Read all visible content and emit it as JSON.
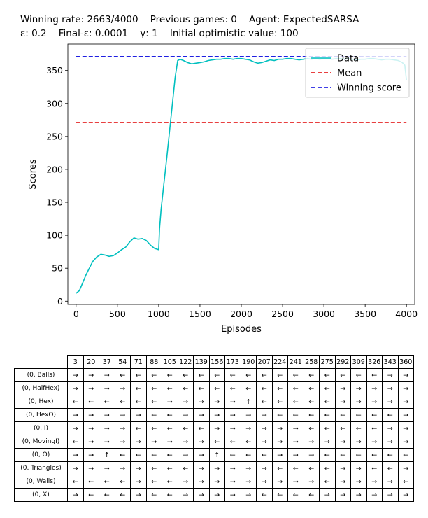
{
  "header": {
    "line1": "Winning rate: 2663/4000    Previous games: 0    Agent: ExpectedSARSA",
    "line2": "ε: 0.2    Final-ε: 0.0001    γ: 1    Initial optimistic value: 100"
  },
  "chart_data": {
    "type": "line",
    "title": "",
    "xlabel": "Episodes",
    "ylabel": "Scores",
    "xlim": [
      -100,
      4100
    ],
    "ylim": [
      -5,
      390
    ],
    "xticks": [
      0,
      500,
      1000,
      1500,
      2000,
      2500,
      3000,
      3500,
      4000
    ],
    "yticks": [
      0,
      50,
      100,
      150,
      200,
      250,
      300,
      350
    ],
    "grid": false,
    "legend": "top-right",
    "series": [
      {
        "name": "Data",
        "color": "#00bfbf",
        "style": "solid",
        "x": [
          0,
          40,
          80,
          120,
          160,
          200,
          250,
          300,
          350,
          400,
          450,
          500,
          550,
          600,
          650,
          700,
          750,
          800,
          850,
          900,
          950,
          1000,
          1010,
          1030,
          1060,
          1100,
          1150,
          1200,
          1230,
          1260,
          1300,
          1350,
          1400,
          1450,
          1500,
          1550,
          1600,
          1650,
          1700,
          1750,
          1800,
          1850,
          1900,
          1950,
          2000,
          2050,
          2100,
          2150,
          2200,
          2250,
          2300,
          2350,
          2400,
          2450,
          2500,
          2550,
          2600,
          2650,
          2700,
          2750,
          2800,
          2850,
          2900,
          2950,
          3000,
          3050,
          3100,
          3150,
          3200,
          3250,
          3300,
          3350,
          3400,
          3450,
          3500,
          3550,
          3600,
          3650,
          3700,
          3750,
          3800,
          3850,
          3900,
          3950,
          3980,
          4000
        ],
        "y": [
          12,
          16,
          28,
          40,
          50,
          60,
          67,
          71,
          70,
          68,
          69,
          73,
          78,
          82,
          90,
          96,
          94,
          95,
          92,
          85,
          80,
          78,
          110,
          140,
          175,
          220,
          280,
          340,
          365,
          367,
          365,
          362,
          360,
          361,
          362,
          363,
          365,
          366,
          367,
          367,
          368,
          368,
          367,
          368,
          368,
          367,
          366,
          363,
          361,
          362,
          364,
          366,
          365,
          367,
          367,
          368,
          368,
          367,
          366,
          367,
          368,
          367,
          368,
          367,
          368,
          368,
          367,
          368,
          368,
          367,
          368,
          367,
          366,
          367,
          367,
          368,
          368,
          367,
          366,
          367,
          367,
          366,
          365,
          362,
          358,
          335
        ]
      },
      {
        "name": "Mean",
        "color": "#e00000",
        "style": "dashed",
        "x": [
          0,
          4000
        ],
        "y": [
          271,
          271
        ]
      },
      {
        "name": "Winning score",
        "color": "#0000dd",
        "style": "dashed",
        "x": [
          0,
          4000
        ],
        "y": [
          371,
          371
        ]
      }
    ]
  },
  "policy_table": {
    "columns": [
      "3",
      "20",
      "37",
      "54",
      "71",
      "88",
      "105",
      "122",
      "139",
      "156",
      "173",
      "190",
      "207",
      "224",
      "241",
      "258",
      "275",
      "292",
      "309",
      "326",
      "343",
      "360"
    ],
    "rows": [
      {
        "label": "(0, Balls)",
        "cells": [
          "→",
          "→",
          "→",
          "←",
          "←",
          "←",
          "←",
          "←",
          "←",
          "←",
          "←",
          "←",
          "←",
          "←",
          "←",
          "←",
          "←",
          "←",
          "←",
          "←",
          "→",
          "→"
        ]
      },
      {
        "label": "(0, HalfHex)",
        "cells": [
          "→",
          "→",
          "→",
          "→",
          "←",
          "←",
          "←",
          "←",
          "←",
          "←",
          "←",
          "←",
          "←",
          "←",
          "←",
          "←",
          "←",
          "→",
          "→",
          "→",
          "→",
          "→"
        ]
      },
      {
        "label": "(0, Hex)",
        "cells": [
          "←",
          "←",
          "←",
          "←",
          "←",
          "←",
          "→",
          "→",
          "→",
          "→",
          "→",
          "↑",
          "←",
          "←",
          "←",
          "←",
          "←",
          "→",
          "→",
          "→",
          "→",
          "→"
        ]
      },
      {
        "label": "(0, HexO)",
        "cells": [
          "→",
          "→",
          "→",
          "→",
          "→",
          "←",
          "←",
          "→",
          "→",
          "→",
          "→",
          "→",
          "→",
          "←",
          "←",
          "←",
          "←",
          "←",
          "←",
          "←",
          "←",
          "→"
        ]
      },
      {
        "label": "(0, I)",
        "cells": [
          "→",
          "→",
          "→",
          "→",
          "←",
          "←",
          "←",
          "←",
          "←",
          "→",
          "→",
          "→",
          "→",
          "→",
          "→",
          "←",
          "←",
          "←",
          "←",
          "←",
          "→",
          "→"
        ]
      },
      {
        "label": "(0, MovingI)",
        "cells": [
          "←",
          "→",
          "→",
          "→",
          "→",
          "→",
          "→",
          "→",
          "→",
          "←",
          "←",
          "←",
          "→",
          "→",
          "→",
          "→",
          "→",
          "→",
          "→",
          "→",
          "→",
          "→"
        ]
      },
      {
        "label": "(0, O)",
        "cells": [
          "→",
          "→",
          "↑",
          "←",
          "←",
          "←",
          "←",
          "→",
          "→",
          "↑",
          "←",
          "←",
          "←",
          "→",
          "→",
          "→",
          "←",
          "←",
          "←",
          "←",
          "←",
          "←"
        ]
      },
      {
        "label": "(0, Triangles)",
        "cells": [
          "→",
          "→",
          "→",
          "→",
          "→",
          "←",
          "←",
          "←",
          "→",
          "→",
          "→",
          "→",
          "→",
          "←",
          "←",
          "←",
          "←",
          "→",
          "→",
          "←",
          "←",
          "→"
        ]
      },
      {
        "label": "(0, Walls)",
        "cells": [
          "←",
          "←",
          "←",
          "←",
          "→",
          "←",
          "←",
          "→",
          "→",
          "→",
          "→",
          "→",
          "→",
          "→",
          "→",
          "→",
          "←",
          "→",
          "→",
          "→",
          "→",
          "←"
        ]
      },
      {
        "label": "(0, X)",
        "cells": [
          "→",
          "←",
          "←",
          "←",
          "→",
          "←",
          "←",
          "→",
          "→",
          "→",
          "→",
          "→",
          "←",
          "←",
          "←",
          "←",
          "→",
          "→",
          "→",
          "→",
          "→",
          "→"
        ]
      }
    ]
  }
}
